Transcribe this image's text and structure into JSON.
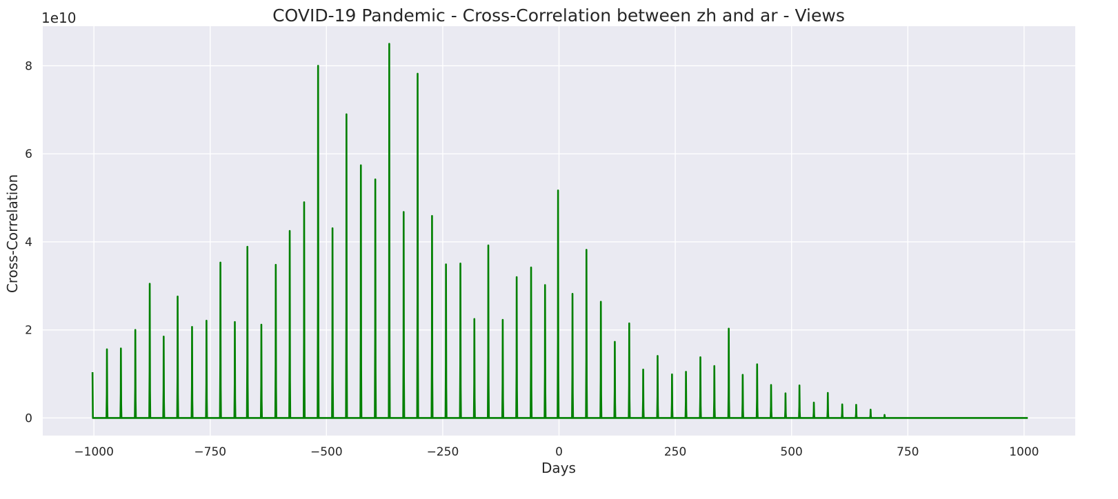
{
  "chart_data": {
    "type": "line",
    "title": "COVID-19 Pandemic - Cross-Correlation between zh and ar - Views",
    "xlabel": "Days",
    "ylabel": "Cross-Correlation",
    "y_scale_offset": "1e10",
    "xlim": [
      -1110,
      1110
    ],
    "ylim": [
      -0.4,
      8.9
    ],
    "y_units": "1e10",
    "x_ticks": [
      -1000,
      -750,
      -500,
      -250,
      0,
      250,
      500,
      750,
      1000
    ],
    "x_tick_labels": [
      "−1000",
      "−750",
      "−500",
      "−250",
      "0",
      "250",
      "500",
      "750",
      "1000"
    ],
    "y_ticks": [
      0,
      2,
      4,
      6,
      8
    ],
    "y_tick_labels": [
      "0",
      "2",
      "4",
      "6",
      "8"
    ],
    "grid": true,
    "background": "#eaeaf2",
    "line_color": "#008000",
    "x_range": [
      -1004,
      1008
    ],
    "peaks": [
      [
        -1003,
        1.04
      ],
      [
        -972,
        1.56
      ],
      [
        -942,
        1.58
      ],
      [
        -911,
        2.0
      ],
      [
        -880,
        3.05
      ],
      [
        -850,
        1.85
      ],
      [
        -820,
        2.76
      ],
      [
        -789,
        2.07
      ],
      [
        -758,
        2.21
      ],
      [
        -728,
        3.53
      ],
      [
        -697,
        2.18
      ],
      [
        -670,
        3.89
      ],
      [
        -640,
        2.12
      ],
      [
        -609,
        3.48
      ],
      [
        -579,
        4.25
      ],
      [
        -548,
        4.9
      ],
      [
        -518,
        8.0
      ],
      [
        -487,
        4.31
      ],
      [
        -457,
        6.9
      ],
      [
        -426,
        5.74
      ],
      [
        -395,
        5.42
      ],
      [
        -365,
        8.5
      ],
      [
        -334,
        4.68
      ],
      [
        -304,
        7.82
      ],
      [
        -273,
        4.59
      ],
      [
        -243,
        3.49
      ],
      [
        -212,
        3.51
      ],
      [
        -182,
        2.25
      ],
      [
        -152,
        3.92
      ],
      [
        -121,
        2.23
      ],
      [
        -91,
        3.2
      ],
      [
        -60,
        3.42
      ],
      [
        -30,
        3.02
      ],
      [
        -2,
        5.17
      ],
      [
        29,
        2.82
      ],
      [
        59,
        3.82
      ],
      [
        90,
        2.64
      ],
      [
        120,
        1.73
      ],
      [
        151,
        2.15
      ],
      [
        181,
        1.1
      ],
      [
        212,
        1.41
      ],
      [
        243,
        0.99
      ],
      [
        273,
        1.05
      ],
      [
        304,
        1.38
      ],
      [
        334,
        1.18
      ],
      [
        365,
        2.03
      ],
      [
        395,
        0.98
      ],
      [
        426,
        1.22
      ],
      [
        456,
        0.75
      ],
      [
        487,
        0.56
      ],
      [
        517,
        0.74
      ],
      [
        548,
        0.35
      ],
      [
        578,
        0.57
      ],
      [
        609,
        0.31
      ],
      [
        639,
        0.3
      ],
      [
        670,
        0.19
      ],
      [
        700,
        0.07
      ]
    ]
  }
}
